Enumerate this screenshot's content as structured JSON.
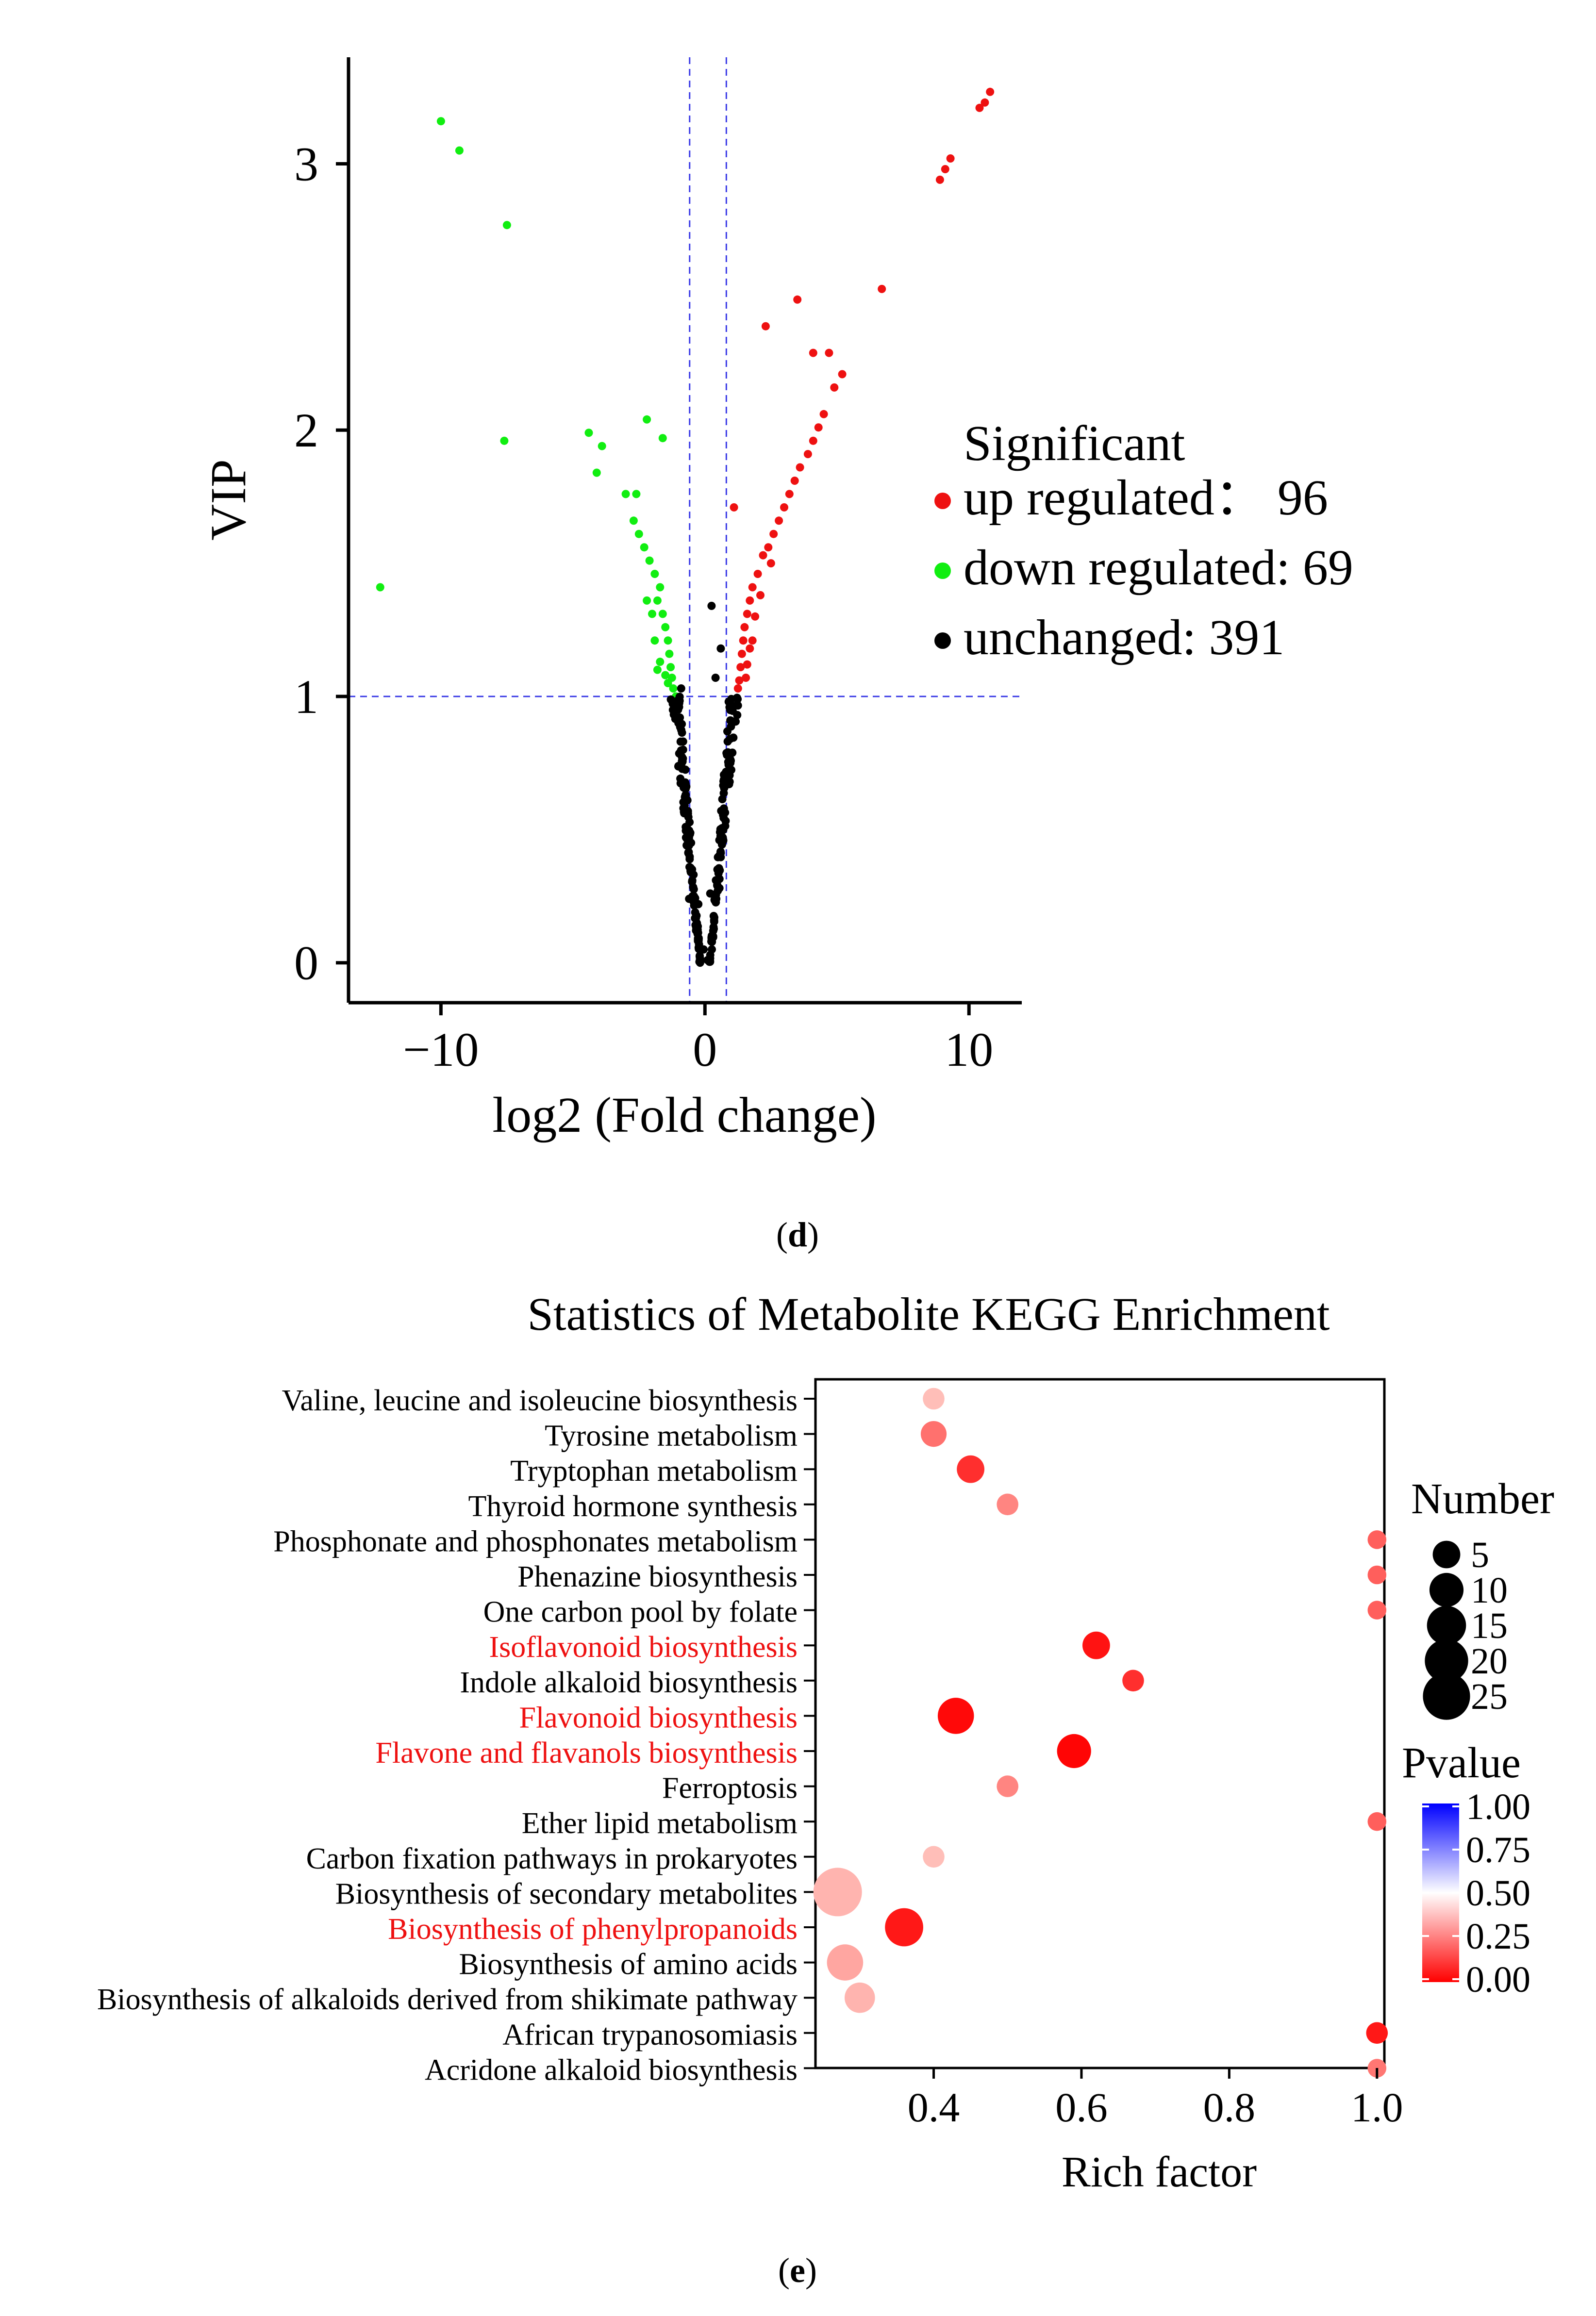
{
  "colors": {
    "up": "#ee1111",
    "down": "#11ee11",
    "unchanged": "#000000",
    "reference_line": "#3a3ae6",
    "highlight_label": "#ee1111",
    "pvalue_low": "#ff0000",
    "pvalue_mid": "#ffffff",
    "pvalue_high": "#0000ff"
  },
  "panel_d": {
    "caption": "d",
    "chart_data": {
      "type": "scatter",
      "title": "",
      "xlabel": "log2 (Fold change)",
      "ylabel": "VIP",
      "xlim": [
        -13.5,
        12
      ],
      "ylim": [
        -0.15,
        3.4
      ],
      "xticks": [
        -10,
        0,
        10
      ],
      "xtick_labels": [
        "−10",
        "0",
        "10"
      ],
      "yticks": [
        0,
        1,
        2,
        3
      ],
      "ytick_labels": [
        "0",
        "1",
        "2",
        "3"
      ],
      "reference_lines": {
        "x": [
          -0.58,
          0.81
        ],
        "y": [
          1
        ]
      },
      "legend": {
        "title": "Significant",
        "position": "right",
        "entries": [
          {
            "key": "up",
            "label": "up regulated：  96"
          },
          {
            "key": "down",
            "label": "down regulated: 69"
          },
          {
            "key": "unchanged",
            "label": "unchanged: 391"
          }
        ]
      },
      "series": [
        {
          "key": "up",
          "points": [
            [
              10.8,
              3.27
            ],
            [
              10.6,
              3.23
            ],
            [
              10.4,
              3.21
            ],
            [
              9.3,
              3.02
            ],
            [
              9.1,
              2.98
            ],
            [
              8.9,
              2.94
            ],
            [
              6.7,
              2.53
            ],
            [
              3.5,
              2.49
            ],
            [
              2.3,
              2.39
            ],
            [
              4.1,
              2.29
            ],
            [
              4.7,
              2.29
            ],
            [
              5.2,
              2.21
            ],
            [
              4.9,
              2.16
            ],
            [
              4.5,
              2.06
            ],
            [
              4.3,
              2.01
            ],
            [
              4.1,
              1.96
            ],
            [
              3.9,
              1.91
            ],
            [
              3.6,
              1.86
            ],
            [
              3.4,
              1.81
            ],
            [
              3.2,
              1.76
            ],
            [
              3.0,
              1.71
            ],
            [
              1.1,
              1.71
            ],
            [
              2.8,
              1.66
            ],
            [
              2.6,
              1.61
            ],
            [
              2.4,
              1.56
            ],
            [
              2.2,
              1.53
            ],
            [
              2.5,
              1.5
            ],
            [
              2.0,
              1.46
            ],
            [
              1.8,
              1.41
            ],
            [
              1.7,
              1.36
            ],
            [
              1.6,
              1.31
            ],
            [
              1.5,
              1.26
            ],
            [
              1.45,
              1.21
            ],
            [
              1.4,
              1.16
            ],
            [
              1.35,
              1.11
            ],
            [
              1.3,
              1.06
            ],
            [
              1.25,
              1.03
            ],
            [
              1.6,
              1.12
            ],
            [
              1.8,
              1.21
            ],
            [
              2.1,
              1.38
            ],
            [
              1.9,
              1.3
            ],
            [
              1.7,
              1.18
            ],
            [
              1.55,
              1.07
            ]
          ]
        },
        {
          "key": "down",
          "points": [
            [
              -10.0,
              3.16
            ],
            [
              -9.3,
              3.05
            ],
            [
              -7.5,
              2.77
            ],
            [
              -7.6,
              1.96
            ],
            [
              -12.3,
              1.41
            ],
            [
              -4.4,
              1.99
            ],
            [
              -2.2,
              2.04
            ],
            [
              -3.9,
              1.94
            ],
            [
              -1.6,
              1.97
            ],
            [
              -4.1,
              1.84
            ],
            [
              -3.0,
              1.76
            ],
            [
              -2.6,
              1.76
            ],
            [
              -2.7,
              1.66
            ],
            [
              -2.5,
              1.61
            ],
            [
              -2.3,
              1.56
            ],
            [
              -2.1,
              1.51
            ],
            [
              -1.9,
              1.46
            ],
            [
              -1.7,
              1.41
            ],
            [
              -1.8,
              1.36
            ],
            [
              -1.6,
              1.31
            ],
            [
              -1.5,
              1.26
            ],
            [
              -1.4,
              1.21
            ],
            [
              -1.35,
              1.16
            ],
            [
              -1.3,
              1.11
            ],
            [
              -1.25,
              1.07
            ],
            [
              -1.2,
              1.03
            ],
            [
              -2.0,
              1.31
            ],
            [
              -1.9,
              1.21
            ],
            [
              -1.7,
              1.13
            ],
            [
              -1.5,
              1.08
            ],
            [
              -1.8,
              1.1
            ],
            [
              -2.2,
              1.36
            ],
            [
              -1.1,
              1.0
            ],
            [
              -1.4,
              1.05
            ]
          ]
        }
      ]
    }
  },
  "panel_e": {
    "caption": "e",
    "chart_data": {
      "type": "scatter",
      "title": "Statistics of Metabolite KEGG Enrichment",
      "xlabel": "Rich factor",
      "ylabel": "",
      "xlim": [
        0.24,
        1.01
      ],
      "xticks": [
        0.4,
        0.6,
        0.8,
        1.0
      ],
      "xtick_labels": [
        "0.4",
        "0.6",
        "0.8",
        "1.0"
      ],
      "categories": [
        "Valine, leucine and isoleucine biosynthesis",
        "Tyrosine metabolism",
        "Tryptophan metabolism",
        "Thyroid hormone synthesis",
        "Phosphonate and phosphonates metabolism",
        "Phenazine biosynthesis",
        "One carbon pool by folate",
        "Isoflavonoid biosynthesis",
        "Indole alkaloid biosynthesis",
        "Flavonoid biosynthesis",
        "Flavone and flavanols biosynthesis",
        "Ferroptosis",
        "Ether lipid metabolism",
        "Carbon fixation pathways in prokaryotes",
        "Biosynthesis of secondary metabolites",
        "Biosynthesis of phenylpropanoids",
        "Biosynthesis of amino acids",
        "Biosynthesis of alkaloids derived from shikimate pathway",
        "African trypanosomiasis",
        "Acridone alkaloid biosynthesis"
      ],
      "highlighted": [
        "Isoflavonoid biosynthesis",
        "Flavonoid biosynthesis",
        "Flavone and flavanols biosynthesis",
        "Biosynthesis of phenylpropanoids"
      ],
      "points": [
        {
          "pathway": "Valine, leucine and isoleucine biosynthesis",
          "rich_factor": 0.4,
          "number": 2,
          "pvalue": 0.4
        },
        {
          "pathway": "Tyrosine metabolism",
          "rich_factor": 0.4,
          "number": 4,
          "pvalue": 0.24
        },
        {
          "pathway": "Tryptophan metabolism",
          "rich_factor": 0.45,
          "number": 5,
          "pvalue": 0.1
        },
        {
          "pathway": "Thyroid hormone synthesis",
          "rich_factor": 0.5,
          "number": 2,
          "pvalue": 0.28
        },
        {
          "pathway": "Phosphonate and phosphonates metabolism",
          "rich_factor": 1.0,
          "number": 1,
          "pvalue": 0.2
        },
        {
          "pathway": "Phenazine biosynthesis",
          "rich_factor": 1.0,
          "number": 1,
          "pvalue": 0.2
        },
        {
          "pathway": "One carbon pool by folate",
          "rich_factor": 1.0,
          "number": 1,
          "pvalue": 0.2
        },
        {
          "pathway": "Isoflavonoid biosynthesis",
          "rich_factor": 0.62,
          "number": 5,
          "pvalue": 0.04
        },
        {
          "pathway": "Indole alkaloid biosynthesis",
          "rich_factor": 0.67,
          "number": 2,
          "pvalue": 0.1
        },
        {
          "pathway": "Flavonoid biosynthesis",
          "rich_factor": 0.43,
          "number": 12,
          "pvalue": 0.02
        },
        {
          "pathway": "Flavone and flavanols biosynthesis",
          "rich_factor": 0.59,
          "number": 10,
          "pvalue": 0.01
        },
        {
          "pathway": "Ferroptosis",
          "rich_factor": 0.5,
          "number": 2,
          "pvalue": 0.28
        },
        {
          "pathway": "Ether lipid metabolism",
          "rich_factor": 1.0,
          "number": 1,
          "pvalue": 0.2
        },
        {
          "pathway": "Carbon fixation pathways in prokaryotes",
          "rich_factor": 0.4,
          "number": 2,
          "pvalue": 0.4
        },
        {
          "pathway": "Biosynthesis of secondary metabolites",
          "rich_factor": 0.27,
          "number": 27,
          "pvalue": 0.38
        },
        {
          "pathway": "Biosynthesis of phenylpropanoids",
          "rich_factor": 0.36,
          "number": 14,
          "pvalue": 0.05
        },
        {
          "pathway": "Biosynthesis of amino acids",
          "rich_factor": 0.28,
          "number": 12,
          "pvalue": 0.35
        },
        {
          "pathway": "Biosynthesis of alkaloids derived from shikimate pathway",
          "rich_factor": 0.3,
          "number": 7,
          "pvalue": 0.38
        },
        {
          "pathway": "African trypanosomiasis",
          "rich_factor": 1.0,
          "number": 2,
          "pvalue": 0.05
        },
        {
          "pathway": "Acridone alkaloid biosynthesis",
          "rich_factor": 1.0,
          "number": 1,
          "pvalue": 0.25
        }
      ],
      "legend_size": {
        "title": "Number",
        "values": [
          5,
          10,
          15,
          20,
          25
        ],
        "labels": [
          "5",
          "10",
          "15",
          "20",
          "25"
        ]
      },
      "legend_color": {
        "title": "Pvalue",
        "values": [
          1.0,
          0.75,
          0.5,
          0.25,
          0.0
        ],
        "labels": [
          "1.00",
          "0.75",
          "0.50",
          "0.25",
          "0.00"
        ]
      }
    }
  }
}
